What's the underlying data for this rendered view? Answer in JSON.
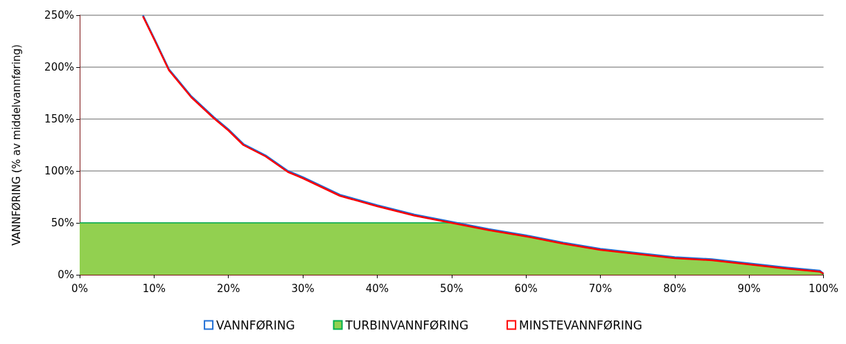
{
  "chart_data": {
    "type": "line",
    "ylabel": "VANNFØRING (% av middelvannføring)",
    "xlim": [
      0,
      100
    ],
    "xticks": [
      {
        "value": 0,
        "label": "0%"
      },
      {
        "value": 10,
        "label": "10%"
      },
      {
        "value": 20,
        "label": "20%"
      },
      {
        "value": 30,
        "label": "30%"
      },
      {
        "value": 40,
        "label": "40%"
      },
      {
        "value": 50,
        "label": "50%"
      },
      {
        "value": 60,
        "label": "60%"
      },
      {
        "value": 70,
        "label": "70%"
      },
      {
        "value": 80,
        "label": "80%"
      },
      {
        "value": 90,
        "label": "90%"
      },
      {
        "value": 100,
        "label": "100%"
      }
    ],
    "ylim": [
      0,
      250
    ],
    "yticks": [
      {
        "value": 0,
        "label": "0%"
      },
      {
        "value": 50,
        "label": "50%"
      },
      {
        "value": 100,
        "label": "100%"
      },
      {
        "value": 150,
        "label": "150%"
      },
      {
        "value": 200,
        "label": "200%"
      },
      {
        "value": 250,
        "label": "250%"
      }
    ],
    "grid": "y",
    "legend": "bottom",
    "marker": "none",
    "series": [
      {
        "name": "VANNFØRING",
        "color": "#1f6fd6",
        "x": [
          8.5,
          10,
          12,
          15,
          18,
          20,
          22,
          25,
          28,
          30,
          35,
          40,
          45,
          50,
          55,
          60,
          65,
          70,
          75,
          80,
          85,
          90,
          95,
          99.5,
          100
        ],
        "values": [
          250,
          228,
          198,
          172,
          152,
          140,
          126,
          115,
          100,
          94,
          77,
          67,
          58,
          51,
          44,
          38,
          31,
          25,
          21,
          17,
          15,
          11,
          7,
          4,
          1
        ]
      },
      {
        "name": "TURBINVANNFØRING",
        "type": "area",
        "color": "#92d050",
        "x": [
          0,
          51,
          55,
          60,
          65,
          70,
          75,
          80,
          85,
          90,
          95,
          99.5,
          100
        ],
        "values": [
          50,
          50,
          43,
          37,
          30,
          24,
          20,
          16,
          14,
          10,
          6,
          3,
          0
        ]
      },
      {
        "name": "MINSTEVANNFØRING",
        "color": "#ff0000",
        "x": [
          8.5,
          10,
          12,
          15,
          18,
          20,
          22,
          25,
          28,
          30,
          35,
          40,
          45,
          50,
          55,
          60,
          65,
          70,
          75,
          80,
          85,
          90,
          95,
          99.5,
          100
        ],
        "values": [
          249,
          227,
          197,
          171,
          151,
          139,
          125,
          114,
          99,
          93,
          76,
          66,
          57,
          50,
          43,
          37,
          30,
          24,
          20,
          16,
          14,
          10,
          6,
          3,
          1
        ]
      }
    ]
  }
}
